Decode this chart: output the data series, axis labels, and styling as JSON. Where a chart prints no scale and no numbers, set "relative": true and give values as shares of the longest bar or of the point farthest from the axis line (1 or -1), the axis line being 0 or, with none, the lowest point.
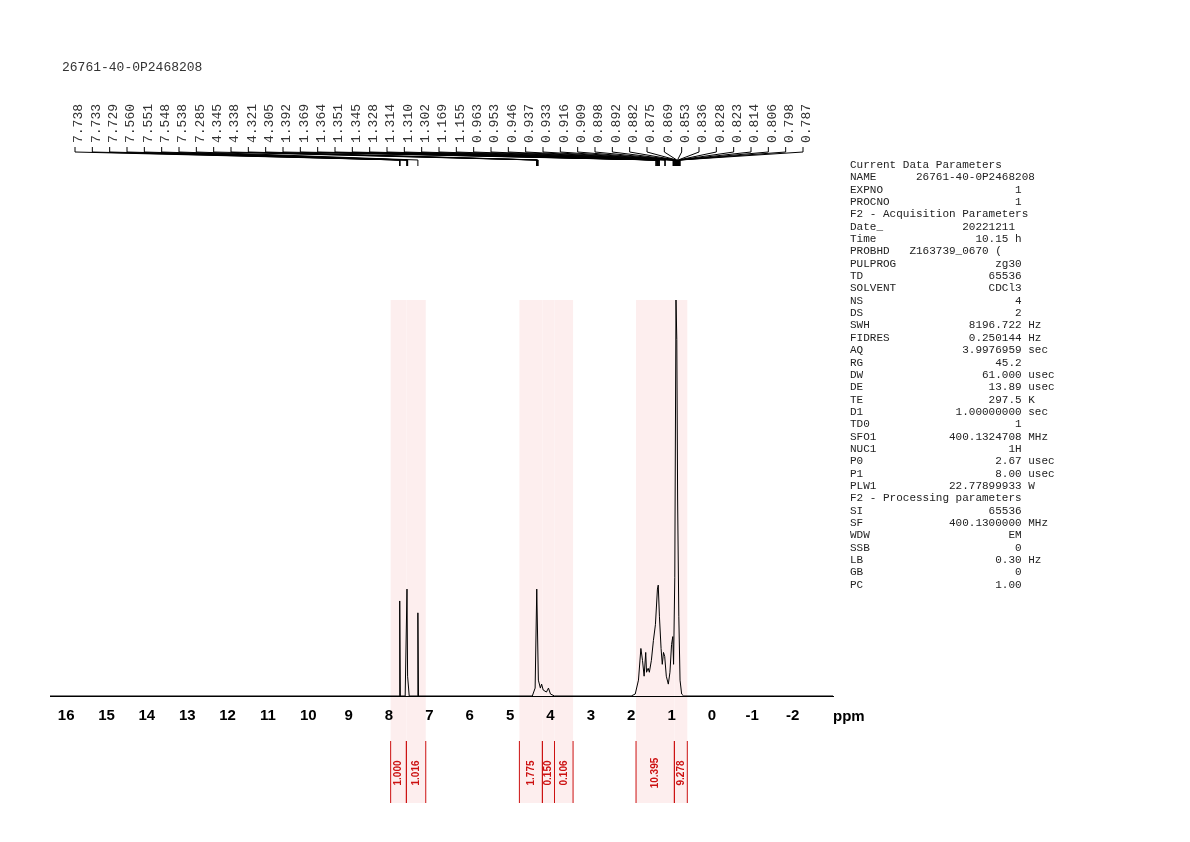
{
  "chart_data": {
    "type": "line",
    "title": "26761-40-0P2468208",
    "xlabel": "ppm",
    "relative": true,
    "grid": false,
    "legend": false,
    "xlim": [
      16.4,
      -3.0
    ],
    "xticks": [
      16,
      15,
      14,
      13,
      12,
      11,
      10,
      9,
      8,
      7,
      6,
      5,
      4,
      3,
      2,
      1,
      0,
      -1,
      -2
    ],
    "series": [
      {
        "color": "#000000",
        "x": [
          16.4,
          7.8,
          7.745,
          7.735,
          7.72,
          7.6,
          7.555,
          7.54,
          7.5,
          7.3,
          7.285,
          7.27,
          4.45,
          4.38,
          4.34,
          4.3,
          4.25,
          4.22,
          4.18,
          4.1,
          4.05,
          4.0,
          3.9,
          2.0,
          1.9,
          1.82,
          1.76,
          1.72,
          1.68,
          1.64,
          1.62,
          1.58,
          1.55,
          1.5,
          1.45,
          1.4,
          1.35,
          1.33,
          1.3,
          1.26,
          1.23,
          1.2,
          1.17,
          1.13,
          1.08,
          1.04,
          1.0,
          0.97,
          0.95,
          0.92,
          0.89,
          0.87,
          0.85,
          0.82,
          0.79,
          0.75,
          0.7,
          -3.0
        ],
        "values": [
          0,
          0,
          0,
          0.24,
          0,
          0,
          0.27,
          0.05,
          0,
          0,
          0.21,
          0,
          0,
          0.02,
          0.27,
          0.04,
          0.02,
          0.03,
          0.015,
          0.01,
          0.02,
          0.005,
          0,
          0,
          0.005,
          0.04,
          0.12,
          0.09,
          0.05,
          0.11,
          0.06,
          0.07,
          0.06,
          0.09,
          0.14,
          0.18,
          0.27,
          0.28,
          0.2,
          0.12,
          0.08,
          0.11,
          0.1,
          0.05,
          0.03,
          0.06,
          0.13,
          0.15,
          0.08,
          0.3,
          1.0,
          0.9,
          0.5,
          0.2,
          0.04,
          0.005,
          0,
          0
        ]
      }
    ],
    "bands": [
      {
        "axis": "x",
        "from": 7.96,
        "to": 7.57,
        "label": "1.000"
      },
      {
        "axis": "x",
        "from": 7.57,
        "to": 7.09,
        "label": "1.016"
      },
      {
        "axis": "x",
        "from": 4.77,
        "to": 4.2,
        "label": "1.775"
      },
      {
        "axis": "x",
        "from": 4.2,
        "to": 3.9,
        "label": "0.150"
      },
      {
        "axis": "x",
        "from": 3.9,
        "to": 3.44,
        "label": "0.106"
      },
      {
        "axis": "x",
        "from": 1.88,
        "to": 0.93,
        "label": "10.395"
      },
      {
        "axis": "x",
        "from": 0.93,
        "to": 0.61,
        "label": "9.278"
      }
    ],
    "annotations": [
      {
        "text": "7.738",
        "x": 7.738
      },
      {
        "text": "7.733",
        "x": 7.733
      },
      {
        "text": "7.729",
        "x": 7.729
      },
      {
        "text": "7.560",
        "x": 7.56
      },
      {
        "text": "7.551",
        "x": 7.551
      },
      {
        "text": "7.548",
        "x": 7.548
      },
      {
        "text": "7.538",
        "x": 7.538
      },
      {
        "text": "7.285",
        "x": 7.285
      },
      {
        "text": "4.345",
        "x": 4.345
      },
      {
        "text": "4.338",
        "x": 4.338
      },
      {
        "text": "4.321",
        "x": 4.321
      },
      {
        "text": "4.305",
        "x": 4.305
      },
      {
        "text": "1.392",
        "x": 1.392
      },
      {
        "text": "1.369",
        "x": 1.369
      },
      {
        "text": "1.364",
        "x": 1.364
      },
      {
        "text": "1.351",
        "x": 1.351
      },
      {
        "text": "1.345",
        "x": 1.345
      },
      {
        "text": "1.328",
        "x": 1.328
      },
      {
        "text": "1.314",
        "x": 1.314
      },
      {
        "text": "1.310",
        "x": 1.31
      },
      {
        "text": "1.302",
        "x": 1.302
      },
      {
        "text": "1.169",
        "x": 1.169
      },
      {
        "text": "1.155",
        "x": 1.155
      },
      {
        "text": "0.963",
        "x": 0.963
      },
      {
        "text": "0.953",
        "x": 0.953
      },
      {
        "text": "0.946",
        "x": 0.946
      },
      {
        "text": "0.937",
        "x": 0.937
      },
      {
        "text": "0.933",
        "x": 0.933
      },
      {
        "text": "0.916",
        "x": 0.916
      },
      {
        "text": "0.909",
        "x": 0.909
      },
      {
        "text": "0.898",
        "x": 0.898
      },
      {
        "text": "0.892",
        "x": 0.892
      },
      {
        "text": "0.882",
        "x": 0.882
      },
      {
        "text": "0.875",
        "x": 0.875
      },
      {
        "text": "0.869",
        "x": 0.869
      },
      {
        "text": "0.853",
        "x": 0.853
      },
      {
        "text": "0.836",
        "x": 0.836
      },
      {
        "text": "0.828",
        "x": 0.828
      },
      {
        "text": "0.823",
        "x": 0.823
      },
      {
        "text": "0.814",
        "x": 0.814
      },
      {
        "text": "0.806",
        "x": 0.806
      },
      {
        "text": "0.798",
        "x": 0.798
      },
      {
        "text": "0.787",
        "x": 0.787
      },
      "Current Data Parameters",
      "NAME      26761-40-0P2468208",
      "EXPNO                    1",
      "PROCNO                   1",
      "F2 - Acquisition Parameters",
      "Date_            20221211",
      "Time               10.15 h",
      "PROBHD   Z163739_0670 (",
      "PULPROG               zg30",
      "TD                   65536",
      "SOLVENT              CDCl3",
      "NS                       4",
      "DS                       2",
      "SWH               8196.722 Hz",
      "FIDRES            0.250144 Hz",
      "AQ               3.9976959 sec",
      "RG                    45.2",
      "DW                  61.000 usec",
      "DE                   13.89 usec",
      "TE                   297.5 K",
      "D1              1.00000000 sec",
      "TD0                      1",
      "SFO1           400.1324708 MHz",
      "NUC1                    1H",
      "P0                    2.67 usec",
      "P1                    8.00 usec",
      "PLW1           22.77899933 W",
      "F2 - Processing parameters",
      "SI                   65536",
      "SF             400.1300000 MHz",
      "WDW                     EM",
      "SSB                      0",
      "LB                    0.30 Hz",
      "GB                       0",
      "PC                    1.00"
    ]
  }
}
